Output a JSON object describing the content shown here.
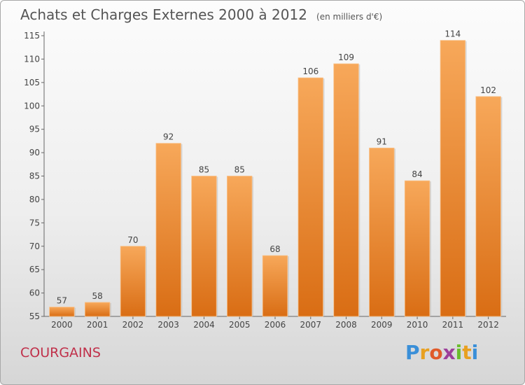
{
  "chart_data": {
    "type": "bar",
    "title": "Achats et Charges Externes 2000 à 2012",
    "unit_label": "(en milliers d'€)",
    "categories": [
      "2000",
      "2001",
      "2002",
      "2003",
      "2004",
      "2005",
      "2006",
      "2007",
      "2008",
      "2009",
      "2010",
      "2011",
      "2012"
    ],
    "values": [
      57,
      58,
      70,
      92,
      85,
      85,
      68,
      106,
      109,
      91,
      84,
      114,
      102
    ],
    "data_labels": [
      "57",
      "58",
      "70",
      "92",
      "85",
      "85",
      "68",
      "106",
      "109",
      "91",
      "84",
      "114",
      "102"
    ],
    "ylim": [
      55,
      115
    ],
    "yticks": [
      55,
      60,
      65,
      70,
      75,
      80,
      85,
      90,
      95,
      100,
      105,
      110,
      115
    ],
    "xlabel": "",
    "ylabel": "",
    "grid": false,
    "legend": "none",
    "bar_color": "#f0882a"
  },
  "footer": {
    "town": "COURGAINS",
    "logo_text": "Proxiti"
  }
}
